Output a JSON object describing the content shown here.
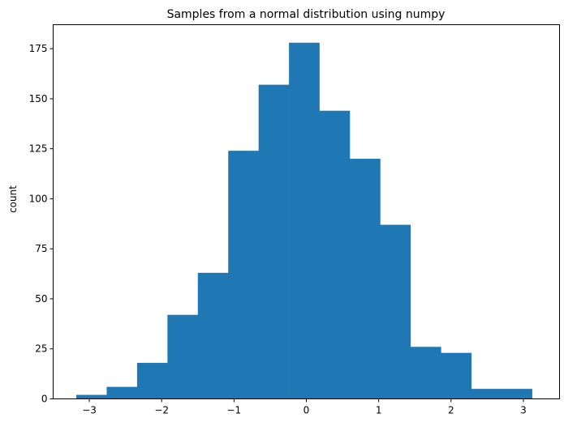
{
  "chart_data": {
    "type": "bar",
    "title": "Samples from a normal distribution using numpy",
    "xlabel": "",
    "ylabel": "count",
    "bin_edges": [
      -3.18,
      -2.76,
      -2.34,
      -1.92,
      -1.5,
      -1.08,
      -0.66,
      -0.24,
      0.18,
      0.6,
      1.02,
      1.44,
      1.86,
      2.28,
      2.7,
      3.12
    ],
    "values": [
      2,
      6,
      18,
      42,
      63,
      124,
      157,
      178,
      144,
      120,
      87,
      26,
      23,
      5,
      5
    ],
    "xlim": [
      -3.5,
      3.5
    ],
    "ylim": [
      0,
      187
    ],
    "xticks": [
      -3,
      -2,
      -1,
      0,
      1,
      2,
      3
    ],
    "xtick_labels": [
      "−3",
      "−2",
      "−1",
      "0",
      "1",
      "2",
      "3"
    ],
    "yticks": [
      0,
      25,
      50,
      75,
      100,
      125,
      150,
      175
    ],
    "ytick_labels": [
      "0",
      "25",
      "50",
      "75",
      "100",
      "125",
      "150",
      "175"
    ],
    "bar_color": "#1f77b4",
    "grid": false,
    "legend": "none"
  }
}
